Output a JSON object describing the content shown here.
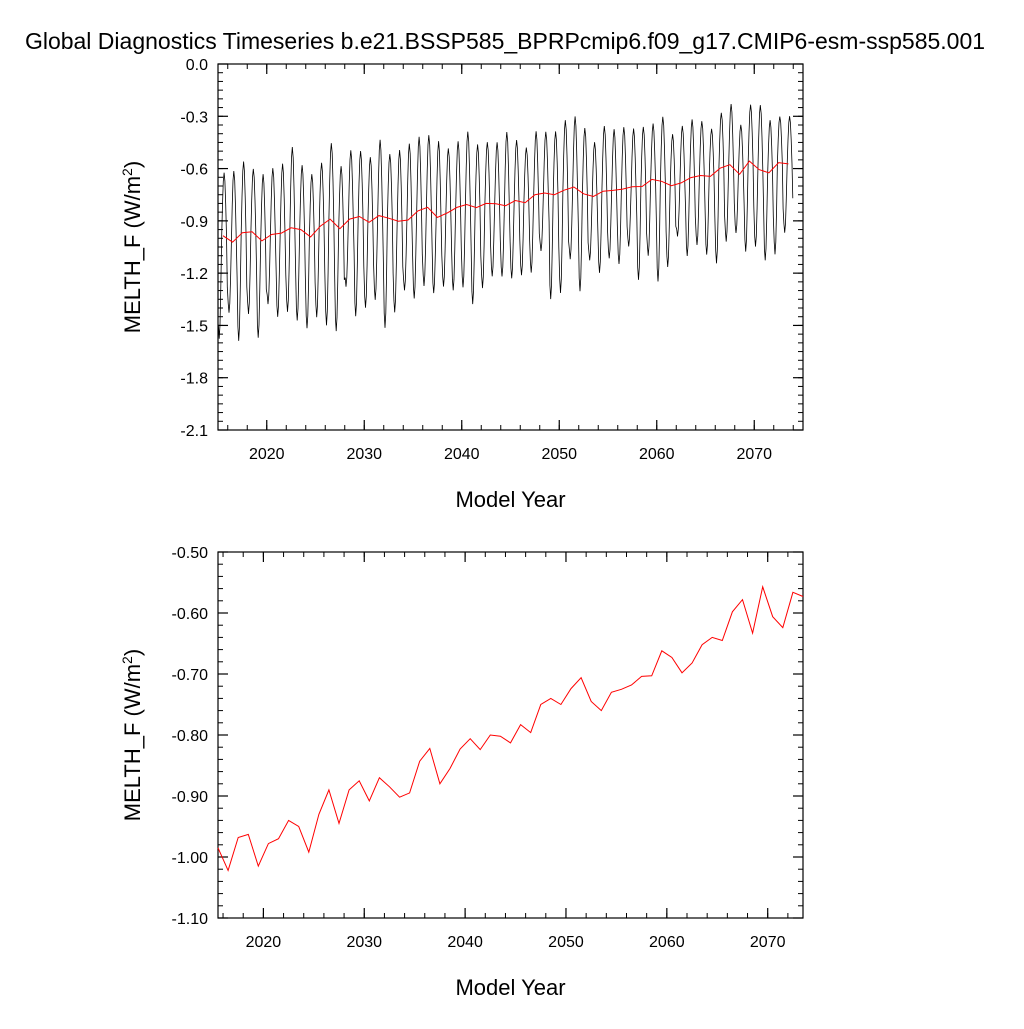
{
  "title": "Global Diagnostics Timeseries b.e21.BSSP585_BPRPcmip6.f09_g17.CMIP6-esm-ssp585.001",
  "colors": {
    "monthly": "#000000",
    "annual": "#ff0000",
    "axis": "#000000"
  },
  "chart_data": [
    {
      "type": "line",
      "xlabel": "Model Year",
      "ylabel": "MELTH_F (W/m",
      "ylabel_sup": "2",
      "ylabel_close": ")",
      "xlim": [
        2015,
        2075
      ],
      "ylim": [
        -2.1,
        0.0
      ],
      "xticks": [
        2020,
        2030,
        2040,
        2050,
        2060,
        2070
      ],
      "xtick_labels": [
        "2020",
        "2030",
        "2040",
        "2050",
        "2060",
        "2070"
      ],
      "yticks": [
        0.0,
        -0.3,
        -0.6,
        -0.9,
        -1.2,
        -1.5,
        -1.8,
        -2.1
      ],
      "ytick_labels": [
        "0.0",
        "-0.3",
        "-0.6",
        "-0.9",
        "-1.2",
        "-1.5",
        "-1.8",
        "-2.1"
      ],
      "series": [
        {
          "kind": "monthly",
          "color": "#000000",
          "seasonal_amplitude_start": 0.6,
          "seasonal_amplitude_end": 0.45
        },
        {
          "kind": "annual",
          "color": "#ff0000",
          "x": [
            2015.5,
            2016.5,
            2017.5,
            2018.5,
            2019.5,
            2020.5,
            2021.5,
            2022.5,
            2023.5,
            2024.5,
            2025.5,
            2026.5,
            2027.5,
            2028.5,
            2029.5,
            2030.5,
            2031.5,
            2032.5,
            2033.5,
            2034.5,
            2035.5,
            2036.5,
            2037.5,
            2038.5,
            2039.5,
            2040.5,
            2041.5,
            2042.5,
            2043.5,
            2044.5,
            2045.5,
            2046.5,
            2047.5,
            2048.5,
            2049.5,
            2050.5,
            2051.5,
            2052.5,
            2053.5,
            2054.5,
            2055.5,
            2056.5,
            2057.5,
            2058.5,
            2059.5,
            2060.5,
            2061.5,
            2062.5,
            2063.5,
            2064.5,
            2065.5,
            2066.5,
            2067.5,
            2068.5,
            2069.5,
            2070.5,
            2071.5,
            2072.5,
            2073.5
          ],
          "values": [
            -0.985,
            -1.022,
            -0.968,
            -0.963,
            -1.015,
            -0.978,
            -0.97,
            -0.94,
            -0.95,
            -0.992,
            -0.93,
            -0.89,
            -0.945,
            -0.89,
            -0.875,
            -0.908,
            -0.87,
            -0.885,
            -0.902,
            -0.895,
            -0.843,
            -0.822,
            -0.88,
            -0.855,
            -0.823,
            -0.806,
            -0.824,
            -0.8,
            -0.802,
            -0.813,
            -0.783,
            -0.796,
            -0.75,
            -0.74,
            -0.75,
            -0.724,
            -0.706,
            -0.745,
            -0.76,
            -0.73,
            -0.725,
            -0.718,
            -0.704,
            -0.703,
            -0.662,
            -0.673,
            -0.698,
            -0.682,
            -0.652,
            -0.64,
            -0.645,
            -0.598,
            -0.578,
            -0.633,
            -0.557,
            -0.606,
            -0.624,
            -0.566,
            -0.573
          ]
        }
      ]
    },
    {
      "type": "line",
      "xlabel": "Model Year",
      "ylabel": "MELTH_F (W/m",
      "ylabel_sup": "2",
      "ylabel_close": ")",
      "xlim": [
        2015.5,
        2073.5
      ],
      "ylim": [
        -1.1,
        -0.5
      ],
      "xticks": [
        2020,
        2030,
        2040,
        2050,
        2060,
        2070
      ],
      "xtick_labels": [
        "2020",
        "2030",
        "2040",
        "2050",
        "2060",
        "2070"
      ],
      "yticks": [
        -0.5,
        -0.6,
        -0.7,
        -0.8,
        -0.9,
        -1.0,
        -1.1
      ],
      "ytick_labels": [
        "-0.50",
        "-0.60",
        "-0.70",
        "-0.80",
        "-0.90",
        "-1.00",
        "-1.10"
      ],
      "series": [
        {
          "kind": "annual",
          "color": "#ff0000",
          "x": [
            2015.5,
            2016.5,
            2017.5,
            2018.5,
            2019.5,
            2020.5,
            2021.5,
            2022.5,
            2023.5,
            2024.5,
            2025.5,
            2026.5,
            2027.5,
            2028.5,
            2029.5,
            2030.5,
            2031.5,
            2032.5,
            2033.5,
            2034.5,
            2035.5,
            2036.5,
            2037.5,
            2038.5,
            2039.5,
            2040.5,
            2041.5,
            2042.5,
            2043.5,
            2044.5,
            2045.5,
            2046.5,
            2047.5,
            2048.5,
            2049.5,
            2050.5,
            2051.5,
            2052.5,
            2053.5,
            2054.5,
            2055.5,
            2056.5,
            2057.5,
            2058.5,
            2059.5,
            2060.5,
            2061.5,
            2062.5,
            2063.5,
            2064.5,
            2065.5,
            2066.5,
            2067.5,
            2068.5,
            2069.5,
            2070.5,
            2071.5,
            2072.5,
            2073.5
          ],
          "values": [
            -0.985,
            -1.022,
            -0.968,
            -0.963,
            -1.015,
            -0.978,
            -0.97,
            -0.94,
            -0.95,
            -0.992,
            -0.93,
            -0.89,
            -0.945,
            -0.89,
            -0.875,
            -0.908,
            -0.87,
            -0.885,
            -0.902,
            -0.895,
            -0.843,
            -0.822,
            -0.88,
            -0.855,
            -0.823,
            -0.806,
            -0.824,
            -0.8,
            -0.802,
            -0.813,
            -0.783,
            -0.796,
            -0.75,
            -0.74,
            -0.75,
            -0.724,
            -0.706,
            -0.745,
            -0.76,
            -0.73,
            -0.725,
            -0.718,
            -0.704,
            -0.703,
            -0.662,
            -0.673,
            -0.698,
            -0.682,
            -0.652,
            -0.64,
            -0.645,
            -0.598,
            -0.578,
            -0.633,
            -0.557,
            -0.606,
            -0.624,
            -0.566,
            -0.573
          ]
        }
      ]
    }
  ]
}
